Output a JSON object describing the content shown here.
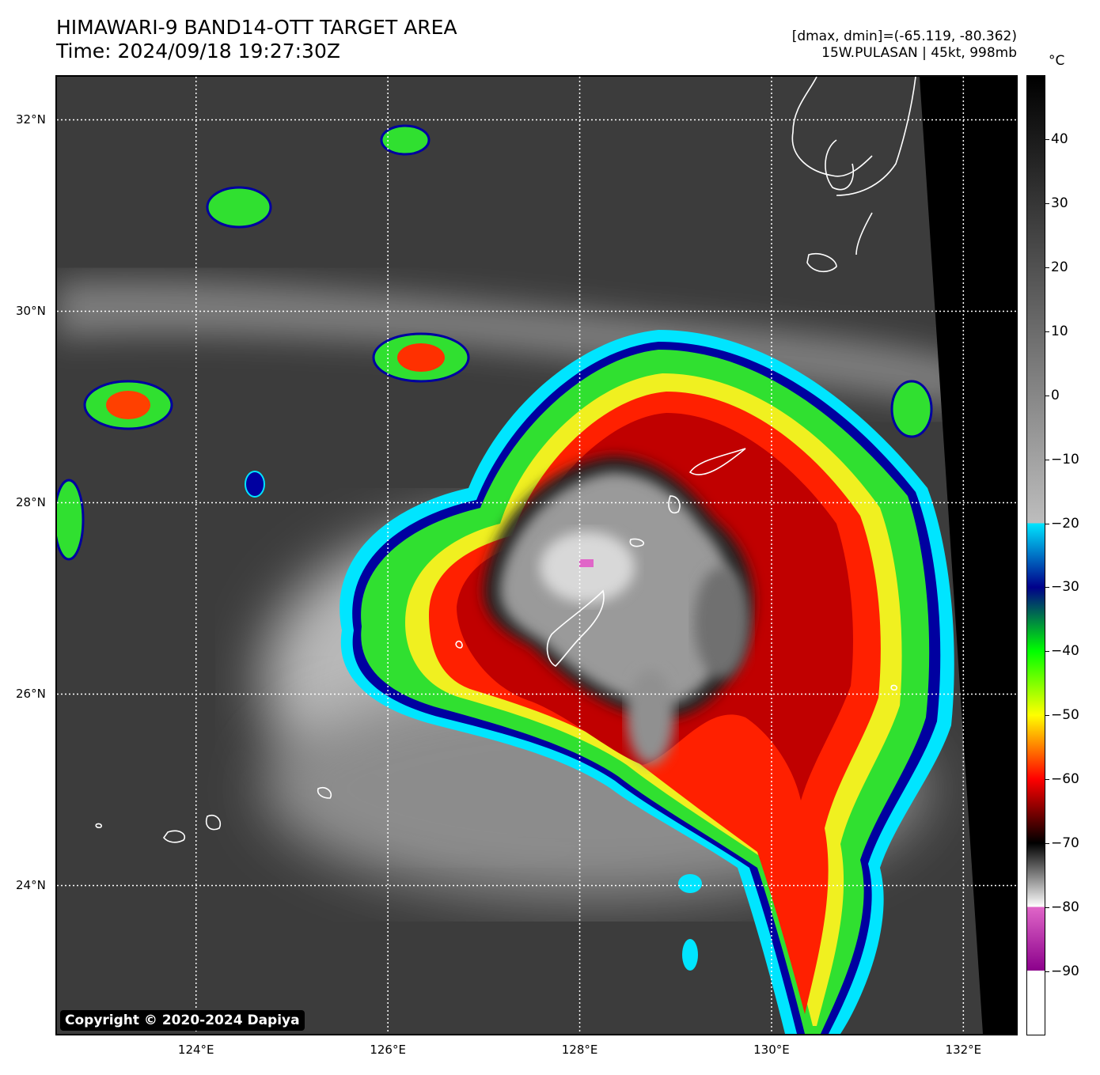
{
  "title": {
    "line1": "HIMAWARI-9 BAND14-OTT TARGET AREA",
    "line2": "Time: 2024/09/18 19:27:30Z"
  },
  "info": {
    "line1": "[dmax, dmin]=(-65.119, -80.362)",
    "line2": "15W.PULASAN | 45kt, 998mb"
  },
  "map": {
    "lat_range": [
      22.45,
      32.45
    ],
    "lon_range": [
      122.55,
      132.55
    ],
    "lat_ticks": [
      {
        "value": 32,
        "label": "32°N"
      },
      {
        "value": 30,
        "label": "30°N"
      },
      {
        "value": 28,
        "label": "28°N"
      },
      {
        "value": 26,
        "label": "26°N"
      },
      {
        "value": 24,
        "label": "24°N"
      }
    ],
    "lon_ticks": [
      {
        "value": 124,
        "label": "124°E"
      },
      {
        "value": 126,
        "label": "126°E"
      },
      {
        "value": 128,
        "label": "128°E"
      },
      {
        "value": 130,
        "label": "130°E"
      },
      {
        "value": 132,
        "label": "132°E"
      }
    ],
    "grid": "dotted white",
    "coastline_color": "#ffffff",
    "copyright": "Copyright © 2020-2024 Dapiya"
  },
  "colorbar": {
    "unit": "°C",
    "range": [
      -100,
      50
    ],
    "ticks": [
      {
        "value": 40,
        "label": "40"
      },
      {
        "value": 30,
        "label": "30"
      },
      {
        "value": 20,
        "label": "20"
      },
      {
        "value": 10,
        "label": "10"
      },
      {
        "value": 0,
        "label": "0"
      },
      {
        "value": -10,
        "label": "−10"
      },
      {
        "value": -20,
        "label": "−20"
      },
      {
        "value": -30,
        "label": "−30"
      },
      {
        "value": -40,
        "label": "−40"
      },
      {
        "value": -50,
        "label": "−50"
      },
      {
        "value": -60,
        "label": "−60"
      },
      {
        "value": -70,
        "label": "−70"
      },
      {
        "value": -80,
        "label": "−80"
      },
      {
        "value": -90,
        "label": "−90"
      }
    ],
    "stops": [
      {
        "value": 50,
        "color": "#000000"
      },
      {
        "value": -20,
        "color": "#bdbdbd"
      },
      {
        "value": -20,
        "color": "#00e5ff"
      },
      {
        "value": -30,
        "color": "#00008b"
      },
      {
        "value": -40,
        "color": "#00ff00"
      },
      {
        "value": -50,
        "color": "#ffff00"
      },
      {
        "value": -60,
        "color": "#ff0000"
      },
      {
        "value": -70,
        "color": "#000000"
      },
      {
        "value": -80,
        "color": "#ffffff"
      },
      {
        "value": -80,
        "color": "#e066c8"
      },
      {
        "value": -90,
        "color": "#8b008b"
      },
      {
        "value": -90,
        "color": "#ffffff"
      },
      {
        "value": -100,
        "color": "#ffffff"
      }
    ]
  }
}
